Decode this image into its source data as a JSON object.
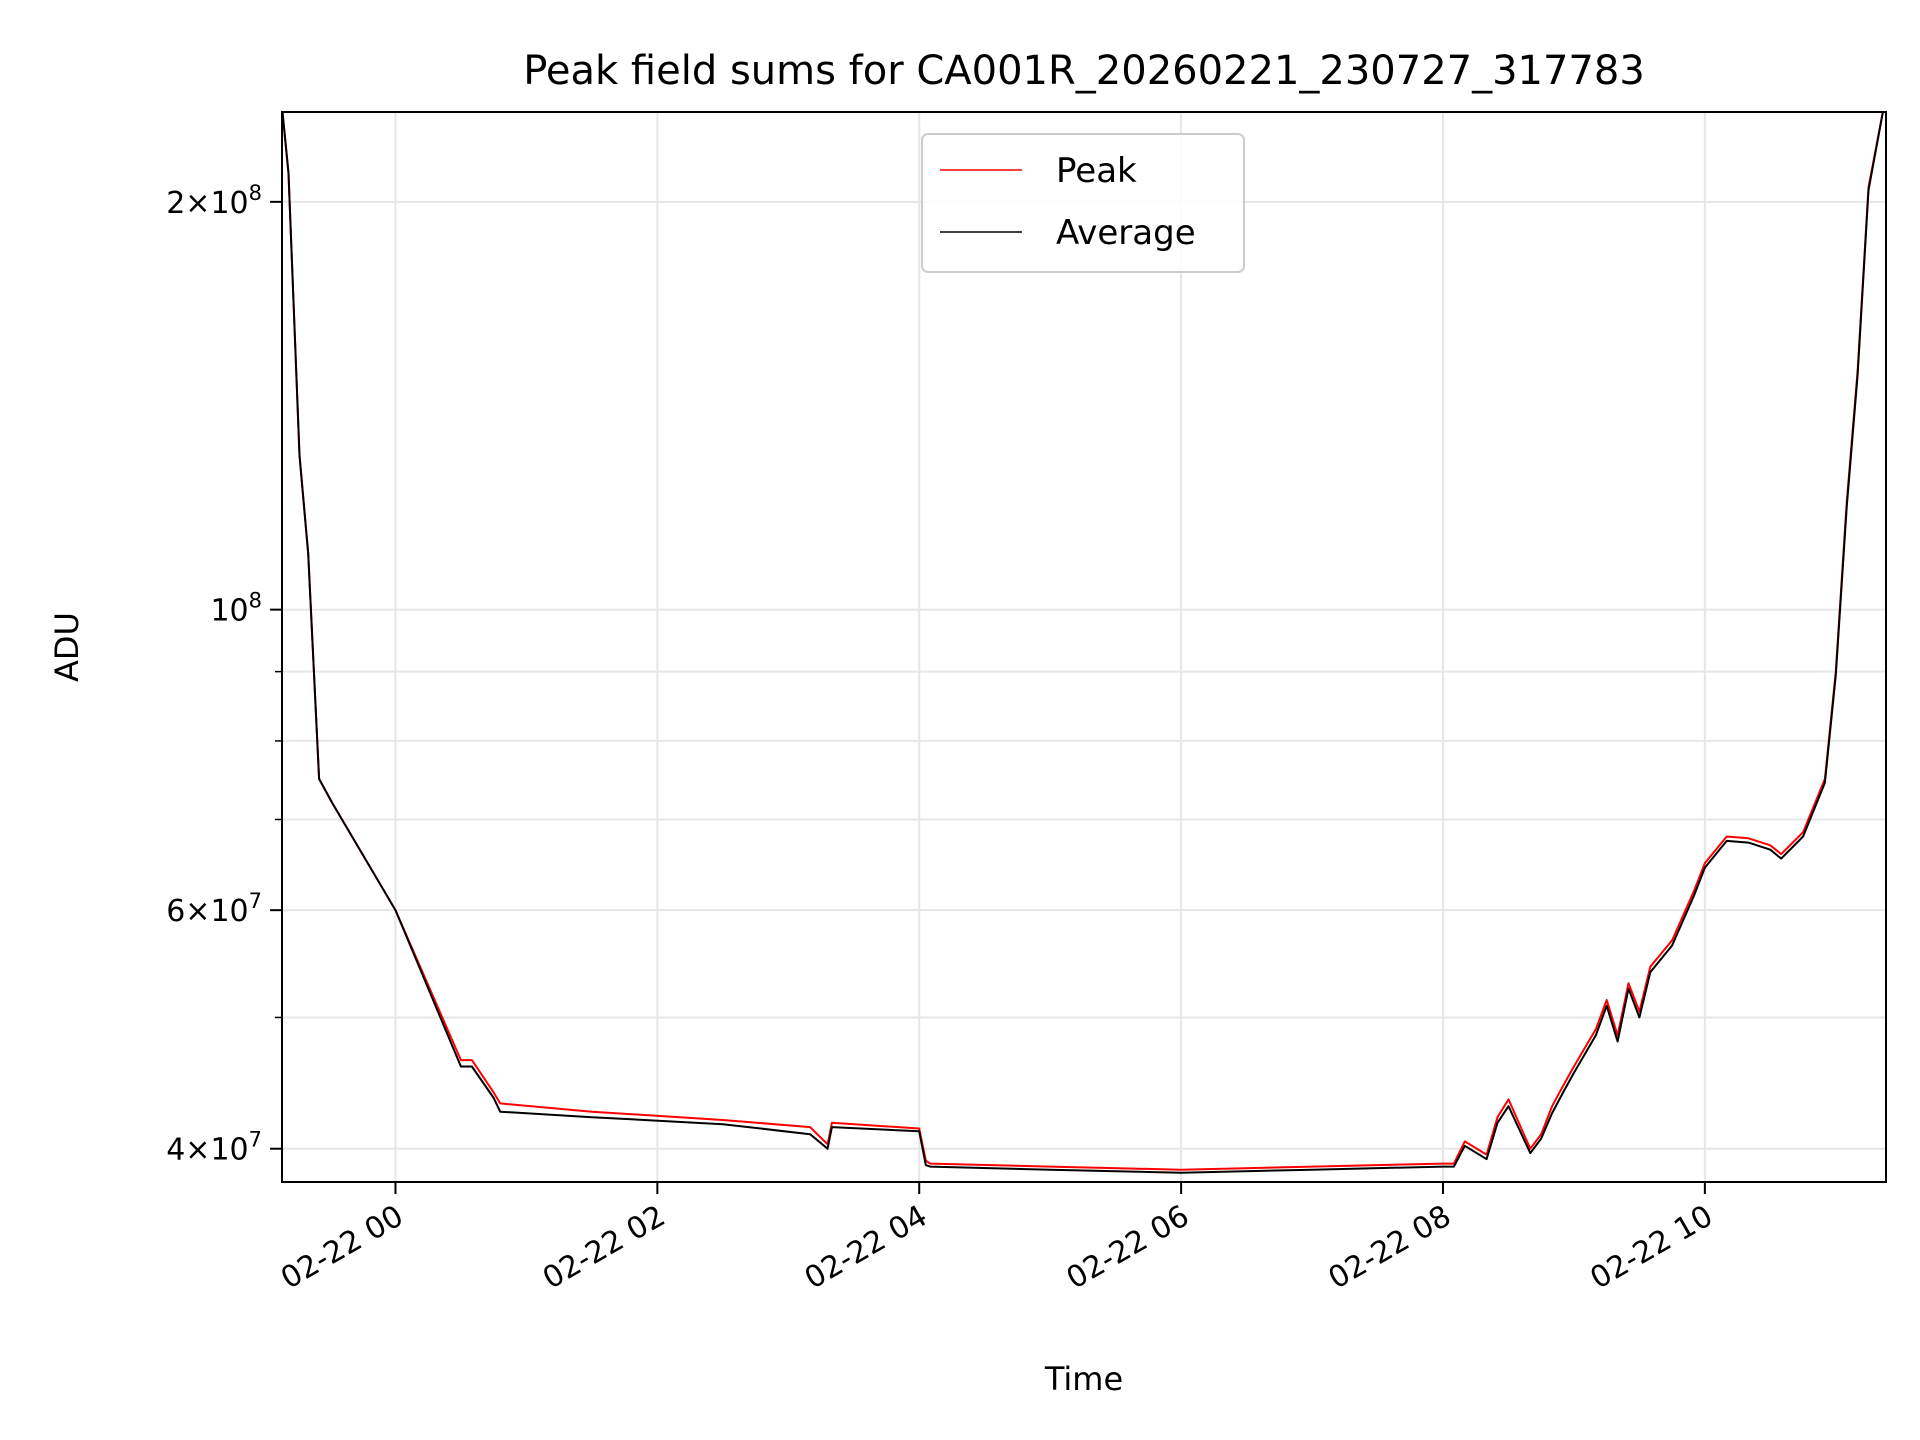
{
  "chart_data": {
    "type": "line",
    "title": "Peak field sums for CA001R_20260221_230727_317783",
    "xlabel": "Time",
    "ylabel": "ADU",
    "y_scale": "log",
    "grid": true,
    "legend_position": "upper center",
    "xlim": [
      "2026-02-21 23:08",
      "2026-02-22 11:23"
    ],
    "ylim": [
      37800000,
      233000000
    ],
    "x_ticks": [
      {
        "value": "2026-02-22 00:00",
        "label": "02-22 00"
      },
      {
        "value": "2026-02-22 02:00",
        "label": "02-22 02"
      },
      {
        "value": "2026-02-22 04:00",
        "label": "02-22 04"
      },
      {
        "value": "2026-02-22 06:00",
        "label": "02-22 06"
      },
      {
        "value": "2026-02-22 08:00",
        "label": "02-22 08"
      },
      {
        "value": "2026-02-22 10:00",
        "label": "02-22 10"
      }
    ],
    "y_ticks": [
      {
        "value": 40000000,
        "base": "4",
        "times": "×",
        "power": "10",
        "exp": "7"
      },
      {
        "value": 60000000,
        "base": "6",
        "times": "×",
        "power": "10",
        "exp": "7"
      },
      {
        "value": 100000000,
        "base": "",
        "times": "",
        "power": "10",
        "exp": "8"
      },
      {
        "value": 200000000,
        "base": "2",
        "times": "×",
        "power": "10",
        "exp": "8"
      }
    ],
    "y_minor_ticks": [
      50000000,
      70000000,
      80000000,
      90000000
    ],
    "series": [
      {
        "name": "Peak",
        "color": "#ff0000",
        "x": [
          "2026-02-21 23:08",
          "2026-02-21 23:11",
          "2026-02-21 23:16",
          "2026-02-21 23:20",
          "2026-02-21 23:25",
          "2026-02-21 23:31",
          "2026-02-22 00:00",
          "2026-02-22 00:30",
          "2026-02-22 00:35",
          "2026-02-22 00:45",
          "2026-02-22 00:48",
          "2026-02-22 01:30",
          "2026-02-22 02:30",
          "2026-02-22 03:10",
          "2026-02-22 03:18",
          "2026-02-22 03:20",
          "2026-02-22 04:00",
          "2026-02-22 04:03",
          "2026-02-22 04:05",
          "2026-02-22 05:00",
          "2026-02-22 06:00",
          "2026-02-22 07:00",
          "2026-02-22 08:00",
          "2026-02-22 08:05",
          "2026-02-22 08:10",
          "2026-02-22 08:20",
          "2026-02-22 08:25",
          "2026-02-22 08:30",
          "2026-02-22 08:40",
          "2026-02-22 08:45",
          "2026-02-22 08:50",
          "2026-02-22 08:55",
          "2026-02-22 09:00",
          "2026-02-22 09:10",
          "2026-02-22 09:15",
          "2026-02-22 09:20",
          "2026-02-22 09:25",
          "2026-02-22 09:30",
          "2026-02-22 09:35",
          "2026-02-22 09:45",
          "2026-02-22 09:55",
          "2026-02-22 10:00",
          "2026-02-22 10:10",
          "2026-02-22 10:20",
          "2026-02-22 10:30",
          "2026-02-22 10:35",
          "2026-02-22 10:45",
          "2026-02-22 10:55",
          "2026-02-22 11:00",
          "2026-02-22 11:05",
          "2026-02-22 11:10",
          "2026-02-22 11:15",
          "2026-02-22 11:22"
        ],
        "y": [
          235000000,
          210000000,
          130000000,
          110000000,
          75000000,
          72000000,
          60000000,
          46500000,
          46500000,
          44000000,
          43200000,
          42600000,
          42000000,
          41500000,
          40300000,
          41800000,
          41400000,
          39200000,
          39000000,
          38800000,
          38600000,
          38800000,
          39000000,
          39000000,
          40500000,
          39600000,
          42200000,
          43500000,
          40000000,
          41000000,
          43000000,
          44500000,
          46000000,
          49000000,
          51500000,
          48500000,
          53000000,
          50500000,
          54500000,
          57000000,
          62000000,
          65000000,
          68000000,
          67800000,
          67000000,
          66000000,
          68500000,
          75000000,
          90000000,
          120000000,
          150000000,
          205000000,
          235000000
        ]
      },
      {
        "name": "Average",
        "color": "#000000",
        "x": [
          "2026-02-21 23:08",
          "2026-02-21 23:11",
          "2026-02-21 23:16",
          "2026-02-21 23:20",
          "2026-02-21 23:25",
          "2026-02-21 23:31",
          "2026-02-22 00:00",
          "2026-02-22 00:30",
          "2026-02-22 00:35",
          "2026-02-22 00:45",
          "2026-02-22 00:48",
          "2026-02-22 01:30",
          "2026-02-22 02:30",
          "2026-02-22 03:10",
          "2026-02-22 03:18",
          "2026-02-22 03:20",
          "2026-02-22 04:00",
          "2026-02-22 04:03",
          "2026-02-22 04:05",
          "2026-02-22 05:00",
          "2026-02-22 06:00",
          "2026-02-22 07:00",
          "2026-02-22 08:00",
          "2026-02-22 08:05",
          "2026-02-22 08:10",
          "2026-02-22 08:20",
          "2026-02-22 08:25",
          "2026-02-22 08:30",
          "2026-02-22 08:40",
          "2026-02-22 08:45",
          "2026-02-22 08:50",
          "2026-02-22 08:55",
          "2026-02-22 09:00",
          "2026-02-22 09:10",
          "2026-02-22 09:15",
          "2026-02-22 09:20",
          "2026-02-22 09:25",
          "2026-02-22 09:30",
          "2026-02-22 09:35",
          "2026-02-22 09:45",
          "2026-02-22 09:55",
          "2026-02-22 10:00",
          "2026-02-22 10:10",
          "2026-02-22 10:20",
          "2026-02-22 10:30",
          "2026-02-22 10:35",
          "2026-02-22 10:45",
          "2026-02-22 10:55",
          "2026-02-22 11:00",
          "2026-02-22 11:05",
          "2026-02-22 11:10",
          "2026-02-22 11:15",
          "2026-02-22 11:22"
        ],
        "y": [
          235000000,
          210000000,
          130000000,
          110000000,
          75000000,
          72000000,
          60000000,
          46000000,
          46000000,
          43600000,
          42600000,
          42200000,
          41700000,
          41000000,
          40000000,
          41500000,
          41200000,
          38900000,
          38800000,
          38600000,
          38400000,
          38600000,
          38800000,
          38800000,
          40200000,
          39300000,
          41800000,
          43000000,
          39700000,
          40700000,
          42500000,
          44000000,
          45500000,
          48500000,
          51000000,
          48000000,
          52500000,
          50000000,
          54000000,
          56500000,
          61500000,
          64500000,
          67500000,
          67300000,
          66500000,
          65500000,
          68000000,
          74500000,
          89500000,
          119000000,
          149000000,
          204000000,
          235000000
        ]
      }
    ]
  }
}
